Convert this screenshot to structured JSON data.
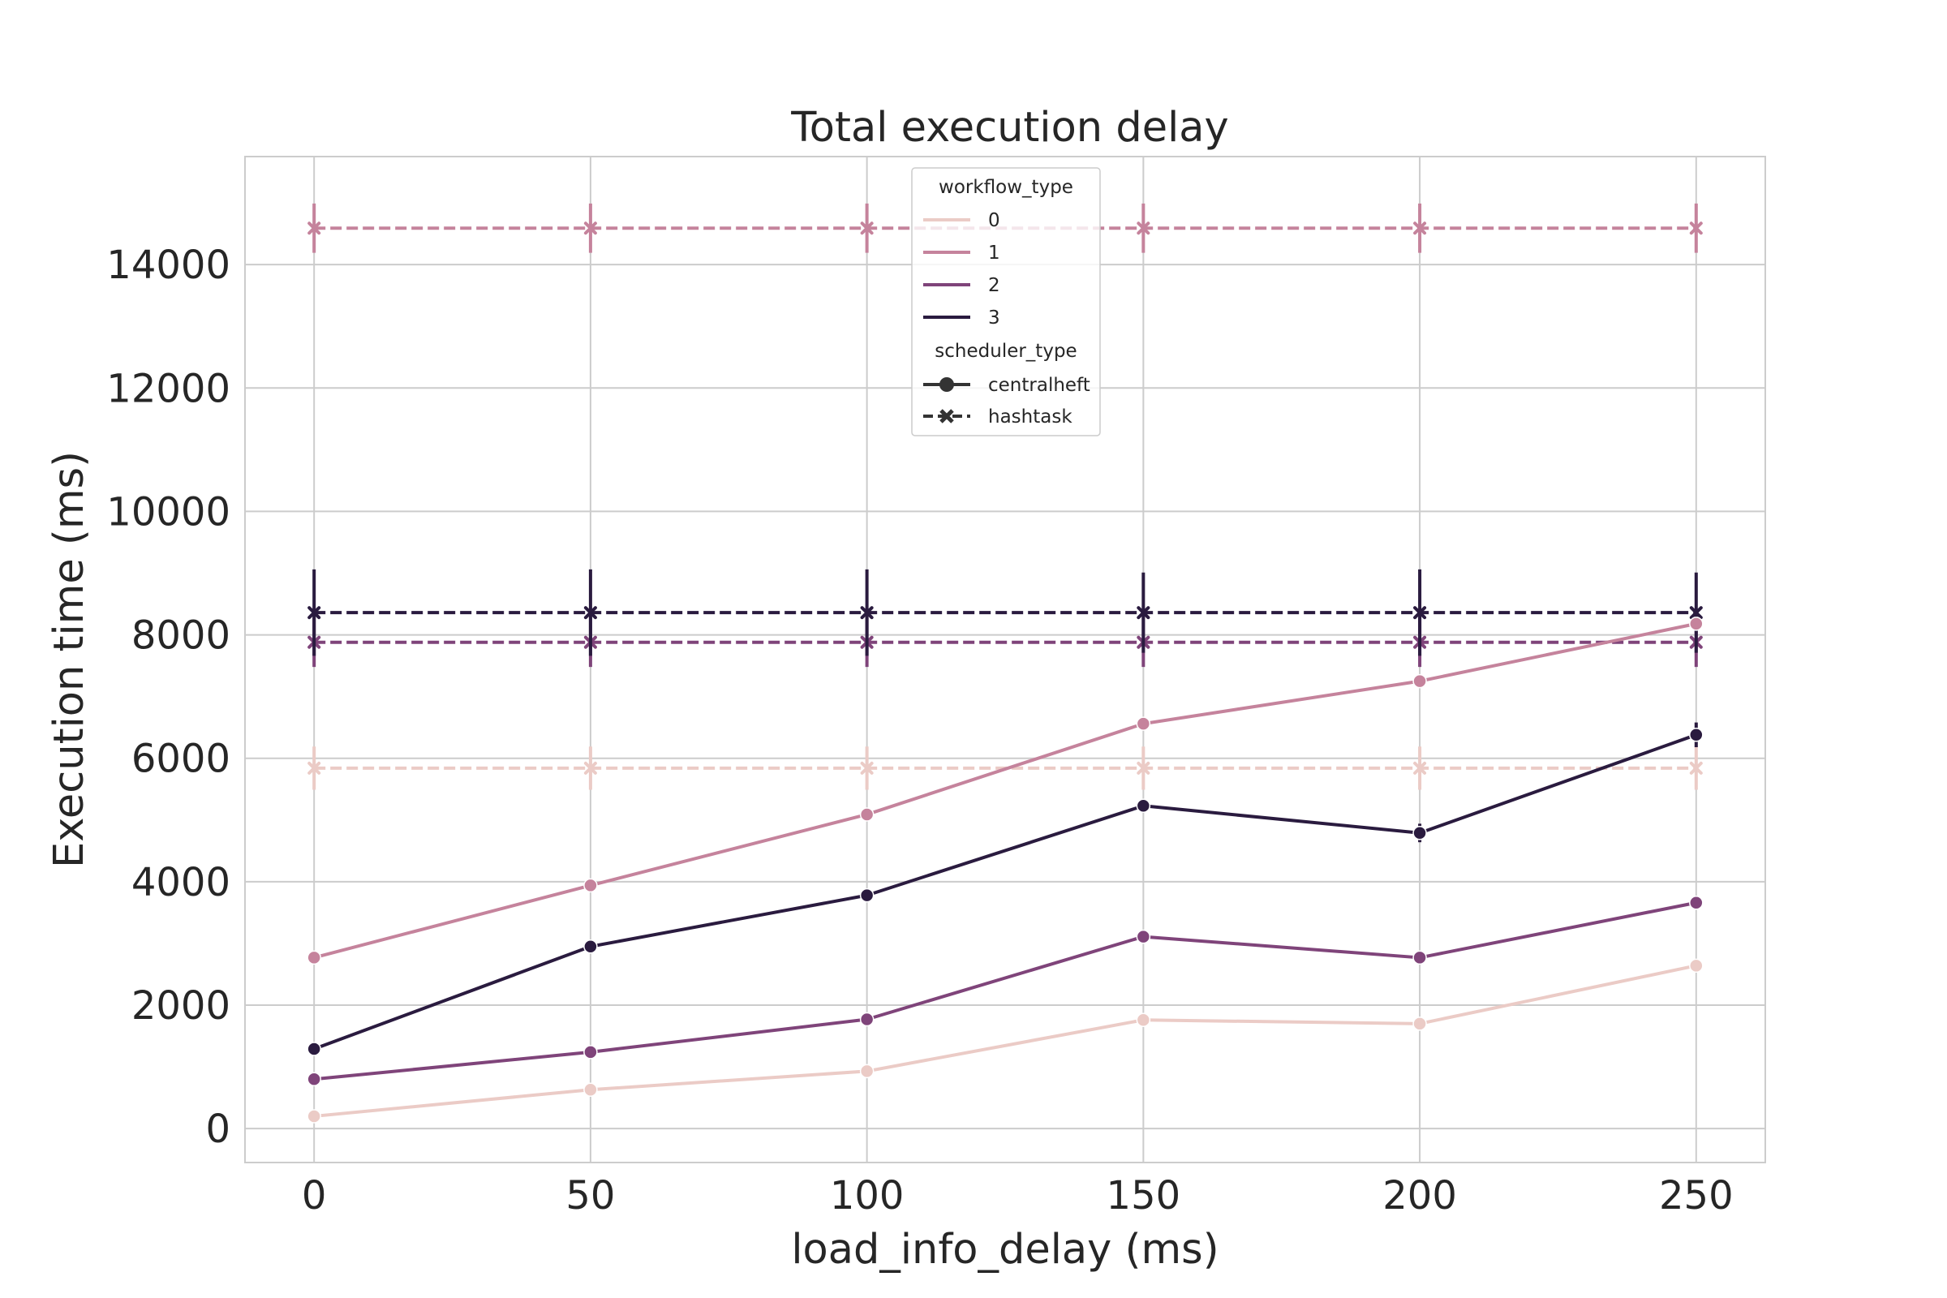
{
  "chart_data": {
    "type": "line",
    "title": "Total execution delay",
    "xlabel": "load_info_delay (ms)",
    "ylabel": "Execution time (ms)",
    "x": [
      0,
      50,
      100,
      150,
      200,
      250
    ],
    "x_ticks": [
      "0",
      "50",
      "100",
      "150",
      "200",
      "250"
    ],
    "y_ticks": [
      "0",
      "2000",
      "4000",
      "6000",
      "8000",
      "10000",
      "12000",
      "14000"
    ],
    "xlim": [
      -12.5,
      262.5
    ],
    "ylim": [
      -550,
      15750
    ],
    "grid": true,
    "legend_placement": "top-center",
    "hue_title": "workflow_type",
    "style_title": "scheduler_type",
    "hue_levels": [
      {
        "label": "0",
        "color": "#ebcbc6"
      },
      {
        "label": "1",
        "color": "#c5839c"
      },
      {
        "label": "2",
        "color": "#7f447a"
      },
      {
        "label": "3",
        "color": "#2a1b3f"
      }
    ],
    "style_levels": [
      {
        "label": "centralheft",
        "dash": "solid",
        "marker": "circle"
      },
      {
        "label": "hashtask",
        "dash": "dashed",
        "marker": "x"
      }
    ],
    "series": [
      {
        "workflow_type": "0",
        "scheduler_type": "centralheft",
        "values": [
          200,
          630,
          930,
          1760,
          1700,
          2640
        ],
        "err": [
          0,
          0,
          0,
          0,
          0,
          0
        ]
      },
      {
        "workflow_type": "1",
        "scheduler_type": "centralheft",
        "values": [
          2770,
          3940,
          5090,
          6560,
          7250,
          8180
        ],
        "err": [
          0,
          0,
          0,
          0,
          0,
          0
        ]
      },
      {
        "workflow_type": "2",
        "scheduler_type": "centralheft",
        "values": [
          800,
          1240,
          1770,
          3110,
          2770,
          3660
        ],
        "err": [
          0,
          0,
          0,
          0,
          0,
          0
        ]
      },
      {
        "workflow_type": "3",
        "scheduler_type": "centralheft",
        "values": [
          1290,
          2950,
          3780,
          5230,
          4790,
          6380
        ],
        "err": [
          0,
          0,
          0,
          50,
          150,
          200
        ]
      },
      {
        "workflow_type": "0",
        "scheduler_type": "hashtask",
        "values": [
          5840,
          5840,
          5840,
          5840,
          5840,
          5840
        ],
        "err": [
          350,
          350,
          350,
          350,
          350,
          350
        ]
      },
      {
        "workflow_type": "1",
        "scheduler_type": "hashtask",
        "values": [
          14590,
          14590,
          14590,
          14590,
          14590,
          14590
        ],
        "err": [
          400,
          400,
          400,
          400,
          400,
          400
        ]
      },
      {
        "workflow_type": "2",
        "scheduler_type": "hashtask",
        "values": [
          7880,
          7880,
          7880,
          7880,
          7880,
          7880
        ],
        "err": [
          400,
          400,
          400,
          400,
          400,
          400
        ]
      },
      {
        "workflow_type": "3",
        "scheduler_type": "hashtask",
        "values": [
          8360,
          8360,
          8360,
          8360,
          8360,
          8360
        ],
        "err": [
          700,
          700,
          700,
          650,
          700,
          650
        ]
      }
    ]
  }
}
